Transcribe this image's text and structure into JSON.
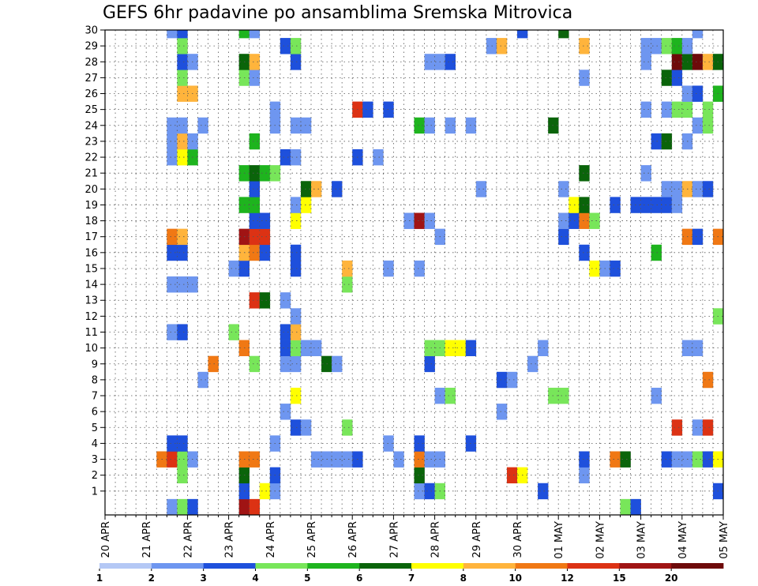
{
  "chart_data": {
    "type": "heatmap",
    "title": "GEFS 6hr padavine po ansamblima Sremska Mitrovica",
    "xlabel": "",
    "ylabel": "",
    "y_ticks": [
      1,
      2,
      3,
      4,
      5,
      6,
      7,
      8,
      9,
      10,
      11,
      12,
      13,
      14,
      15,
      16,
      17,
      18,
      19,
      20,
      21,
      22,
      23,
      24,
      25,
      26,
      27,
      28,
      29,
      30
    ],
    "x_ticks": [
      "20 APR",
      "21 APR",
      "22 APR",
      "23 APR",
      "24 APR",
      "25 APR",
      "26 APR",
      "27 APR",
      "28 APR",
      "29 APR",
      "30 APR",
      "01 MAY",
      "02 MAY",
      "03 MAY",
      "04 MAY",
      "05 MAY"
    ],
    "x_range_steps": [
      0,
      60
    ],
    "y_range_members": [
      0,
      30
    ],
    "grid": "dotted",
    "legend_levels": [
      "1",
      "2",
      "3",
      "4",
      "5",
      "6",
      "7",
      "8",
      "10",
      "12",
      "15",
      "20"
    ],
    "legend_colors": [
      "#b4c8f5",
      "#6e96f0",
      "#1e50dc",
      "#78e65a",
      "#1eb41e",
      "#0a640a",
      "#ffff00",
      "#ffb43c",
      "#f07814",
      "#dc3214",
      "#a01414",
      "#6e0a0a"
    ],
    "cells": [
      [
        6,
        0,
        1
      ],
      [
        7,
        0,
        3
      ],
      [
        8,
        0,
        2
      ],
      [
        13,
        0,
        10
      ],
      [
        14,
        0,
        9
      ],
      [
        50,
        0,
        3
      ],
      [
        51,
        0,
        2
      ],
      [
        13,
        1,
        2
      ],
      [
        15,
        1,
        6
      ],
      [
        16,
        1,
        1
      ],
      [
        30,
        1,
        1
      ],
      [
        31,
        1,
        2
      ],
      [
        32,
        1,
        3
      ],
      [
        42,
        1,
        2
      ],
      [
        59,
        1,
        2
      ],
      [
        7,
        2,
        3
      ],
      [
        13,
        2,
        5
      ],
      [
        16,
        2,
        2
      ],
      [
        30,
        2,
        5
      ],
      [
        39,
        2,
        9
      ],
      [
        40,
        2,
        6
      ],
      [
        46,
        2,
        1
      ],
      [
        5,
        3,
        8
      ],
      [
        6,
        3,
        9
      ],
      [
        7,
        3,
        3
      ],
      [
        8,
        3,
        1
      ],
      [
        13,
        3,
        8
      ],
      [
        14,
        3,
        8
      ],
      [
        20,
        3,
        1
      ],
      [
        21,
        3,
        1
      ],
      [
        22,
        3,
        1
      ],
      [
        23,
        3,
        1
      ],
      [
        24,
        3,
        2
      ],
      [
        28,
        3,
        1
      ],
      [
        30,
        3,
        8
      ],
      [
        31,
        3,
        1
      ],
      [
        32,
        3,
        1
      ],
      [
        46,
        3,
        2
      ],
      [
        49,
        3,
        8
      ],
      [
        50,
        3,
        5
      ],
      [
        54,
        3,
        2
      ],
      [
        55,
        3,
        1
      ],
      [
        56,
        3,
        1
      ],
      [
        57,
        3,
        3
      ],
      [
        58,
        3,
        2
      ],
      [
        59,
        3,
        6
      ],
      [
        6,
        4,
        2
      ],
      [
        7,
        4,
        2
      ],
      [
        16,
        4,
        1
      ],
      [
        27,
        4,
        1
      ],
      [
        30,
        4,
        2
      ],
      [
        35,
        4,
        2
      ],
      [
        18,
        5,
        2
      ],
      [
        19,
        5,
        1
      ],
      [
        23,
        5,
        3
      ],
      [
        55,
        5,
        9
      ],
      [
        57,
        5,
        1
      ],
      [
        58,
        5,
        9
      ],
      [
        17,
        6,
        1
      ],
      [
        38,
        6,
        1
      ],
      [
        18,
        7,
        6
      ],
      [
        32,
        7,
        1
      ],
      [
        33,
        7,
        3
      ],
      [
        43,
        7,
        3
      ],
      [
        44,
        7,
        3
      ],
      [
        53,
        7,
        1
      ],
      [
        9,
        8,
        1
      ],
      [
        38,
        8,
        2
      ],
      [
        39,
        8,
        1
      ],
      [
        58,
        8,
        8
      ],
      [
        10,
        9,
        8
      ],
      [
        14,
        9,
        3
      ],
      [
        17,
        9,
        1
      ],
      [
        18,
        9,
        1
      ],
      [
        21,
        9,
        5
      ],
      [
        22,
        9,
        1
      ],
      [
        31,
        9,
        2
      ],
      [
        41,
        9,
        1
      ],
      [
        13,
        10,
        8
      ],
      [
        17,
        10,
        2
      ],
      [
        18,
        10,
        3
      ],
      [
        19,
        10,
        1
      ],
      [
        20,
        10,
        1
      ],
      [
        31,
        10,
        3
      ],
      [
        32,
        10,
        3
      ],
      [
        33,
        10,
        6
      ],
      [
        34,
        10,
        6
      ],
      [
        35,
        10,
        2
      ],
      [
        42,
        10,
        1
      ],
      [
        56,
        10,
        1
      ],
      [
        57,
        10,
        1
      ],
      [
        6,
        11,
        1
      ],
      [
        7,
        11,
        2
      ],
      [
        12,
        11,
        3
      ],
      [
        17,
        11,
        2
      ],
      [
        18,
        11,
        7
      ],
      [
        18,
        12,
        1
      ],
      [
        59,
        12,
        3
      ],
      [
        14,
        13,
        9
      ],
      [
        15,
        13,
        5
      ],
      [
        17,
        13,
        1
      ],
      [
        6,
        14,
        1
      ],
      [
        7,
        14,
        1
      ],
      [
        8,
        14,
        1
      ],
      [
        23,
        14,
        3
      ],
      [
        12,
        15,
        1
      ],
      [
        13,
        15,
        2
      ],
      [
        18,
        15,
        2
      ],
      [
        23,
        15,
        7
      ],
      [
        27,
        15,
        1
      ],
      [
        30,
        15,
        1
      ],
      [
        47,
        15,
        6
      ],
      [
        48,
        15,
        1
      ],
      [
        49,
        15,
        2
      ],
      [
        6,
        16,
        2
      ],
      [
        7,
        16,
        2
      ],
      [
        13,
        16,
        7
      ],
      [
        14,
        16,
        8
      ],
      [
        15,
        16,
        2
      ],
      [
        18,
        16,
        2
      ],
      [
        46,
        16,
        2
      ],
      [
        53,
        16,
        4
      ],
      [
        6,
        17,
        8
      ],
      [
        7,
        17,
        7
      ],
      [
        13,
        17,
        10
      ],
      [
        14,
        17,
        9
      ],
      [
        15,
        17,
        9
      ],
      [
        32,
        17,
        1
      ],
      [
        44,
        17,
        2
      ],
      [
        56,
        17,
        8
      ],
      [
        57,
        17,
        2
      ],
      [
        59,
        17,
        8
      ],
      [
        14,
        18,
        2
      ],
      [
        15,
        18,
        2
      ],
      [
        18,
        18,
        6
      ],
      [
        29,
        18,
        1
      ],
      [
        30,
        18,
        10
      ],
      [
        31,
        18,
        1
      ],
      [
        44,
        18,
        1
      ],
      [
        45,
        18,
        2
      ],
      [
        46,
        18,
        8
      ],
      [
        47,
        18,
        3
      ],
      [
        13,
        19,
        4
      ],
      [
        14,
        19,
        4
      ],
      [
        18,
        19,
        1
      ],
      [
        19,
        19,
        6
      ],
      [
        45,
        19,
        6
      ],
      [
        46,
        19,
        5
      ],
      [
        49,
        19,
        2
      ],
      [
        51,
        19,
        2
      ],
      [
        52,
        19,
        2
      ],
      [
        53,
        19,
        2
      ],
      [
        54,
        19,
        2
      ],
      [
        55,
        19,
        1
      ],
      [
        14,
        20,
        2
      ],
      [
        19,
        20,
        5
      ],
      [
        20,
        20,
        7
      ],
      [
        22,
        20,
        2
      ],
      [
        36,
        20,
        1
      ],
      [
        44,
        20,
        1
      ],
      [
        54,
        20,
        1
      ],
      [
        55,
        20,
        1
      ],
      [
        56,
        20,
        7
      ],
      [
        57,
        20,
        1
      ],
      [
        58,
        20,
        2
      ],
      [
        13,
        21,
        4
      ],
      [
        14,
        21,
        5
      ],
      [
        15,
        21,
        4
      ],
      [
        16,
        21,
        3
      ],
      [
        46,
        21,
        5
      ],
      [
        52,
        21,
        1
      ],
      [
        6,
        22,
        1
      ],
      [
        7,
        22,
        6
      ],
      [
        8,
        22,
        4
      ],
      [
        17,
        22,
        2
      ],
      [
        18,
        22,
        1
      ],
      [
        24,
        22,
        2
      ],
      [
        26,
        22,
        1
      ],
      [
        6,
        23,
        1
      ],
      [
        7,
        23,
        7
      ],
      [
        8,
        23,
        1
      ],
      [
        14,
        23,
        4
      ],
      [
        53,
        23,
        2
      ],
      [
        54,
        23,
        5
      ],
      [
        56,
        23,
        1
      ],
      [
        6,
        24,
        1
      ],
      [
        7,
        24,
        1
      ],
      [
        9,
        24,
        1
      ],
      [
        16,
        24,
        1
      ],
      [
        18,
        24,
        1
      ],
      [
        19,
        24,
        1
      ],
      [
        30,
        24,
        4
      ],
      [
        31,
        24,
        1
      ],
      [
        33,
        24,
        1
      ],
      [
        35,
        24,
        1
      ],
      [
        43,
        24,
        5
      ],
      [
        57,
        24,
        1
      ],
      [
        58,
        24,
        3
      ],
      [
        16,
        25,
        1
      ],
      [
        24,
        25,
        9
      ],
      [
        25,
        25,
        2
      ],
      [
        27,
        25,
        2
      ],
      [
        52,
        25,
        1
      ],
      [
        54,
        25,
        1
      ],
      [
        55,
        25,
        3
      ],
      [
        56,
        25,
        3
      ],
      [
        58,
        25,
        3
      ],
      [
        7,
        26,
        7
      ],
      [
        8,
        26,
        7
      ],
      [
        56,
        26,
        1
      ],
      [
        57,
        26,
        2
      ],
      [
        59,
        26,
        4
      ],
      [
        7,
        27,
        3
      ],
      [
        13,
        27,
        3
      ],
      [
        14,
        27,
        1
      ],
      [
        46,
        27,
        1
      ],
      [
        54,
        27,
        5
      ],
      [
        55,
        27,
        2
      ],
      [
        7,
        28,
        2
      ],
      [
        8,
        28,
        1
      ],
      [
        13,
        28,
        5
      ],
      [
        14,
        28,
        7
      ],
      [
        18,
        28,
        2
      ],
      [
        31,
        28,
        1
      ],
      [
        32,
        28,
        1
      ],
      [
        33,
        28,
        2
      ],
      [
        52,
        28,
        1
      ],
      [
        55,
        28,
        11
      ],
      [
        56,
        28,
        5
      ],
      [
        57,
        28,
        11
      ],
      [
        58,
        28,
        7
      ],
      [
        59,
        28,
        5
      ],
      [
        7,
        29,
        3
      ],
      [
        17,
        29,
        2
      ],
      [
        18,
        29,
        3
      ],
      [
        37,
        29,
        1
      ],
      [
        38,
        29,
        7
      ],
      [
        46,
        29,
        7
      ],
      [
        52,
        29,
        1
      ],
      [
        53,
        29,
        1
      ],
      [
        54,
        29,
        3
      ],
      [
        55,
        29,
        4
      ],
      [
        56,
        29,
        1
      ],
      [
        6,
        30,
        1
      ],
      [
        7,
        30,
        2
      ],
      [
        13,
        30,
        4
      ],
      [
        14,
        30,
        1
      ],
      [
        40,
        30,
        2
      ],
      [
        44,
        30,
        5
      ],
      [
        57,
        30,
        1
      ]
    ]
  }
}
